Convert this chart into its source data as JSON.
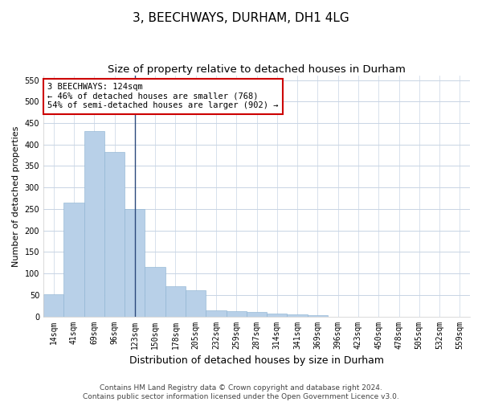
{
  "title1": "3, BEECHWAYS, DURHAM, DH1 4LG",
  "title2": "Size of property relative to detached houses in Durham",
  "xlabel": "Distribution of detached houses by size in Durham",
  "ylabel": "Number of detached properties",
  "categories": [
    "14sqm",
    "41sqm",
    "69sqm",
    "96sqm",
    "123sqm",
    "150sqm",
    "178sqm",
    "205sqm",
    "232sqm",
    "259sqm",
    "287sqm",
    "314sqm",
    "341sqm",
    "369sqm",
    "396sqm",
    "423sqm",
    "450sqm",
    "478sqm",
    "505sqm",
    "532sqm",
    "559sqm"
  ],
  "values": [
    52,
    265,
    432,
    382,
    250,
    115,
    70,
    60,
    15,
    12,
    10,
    7,
    5,
    2,
    0,
    0,
    0,
    0,
    0,
    0,
    0
  ],
  "bar_color": "#b8d0e8",
  "bar_edge_color": "#8ab0d0",
  "vline_color": "#2c4a7c",
  "vline_index": 4,
  "annotation_text": "3 BEECHWAYS: 124sqm\n← 46% of detached houses are smaller (768)\n54% of semi-detached houses are larger (902) →",
  "annotation_box_color": "#ffffff",
  "annotation_box_edge": "#cc0000",
  "ylim": [
    0,
    560
  ],
  "yticks": [
    0,
    50,
    100,
    150,
    200,
    250,
    300,
    350,
    400,
    450,
    500,
    550
  ],
  "footnote1": "Contains HM Land Registry data © Crown copyright and database right 2024.",
  "footnote2": "Contains public sector information licensed under the Open Government Licence v3.0.",
  "bg_color": "#ffffff",
  "grid_color": "#c8d4e4",
  "title1_fontsize": 11,
  "title2_fontsize": 9.5,
  "xlabel_fontsize": 9,
  "ylabel_fontsize": 8,
  "tick_fontsize": 7,
  "annotation_fontsize": 7.5,
  "footnote_fontsize": 6.5
}
